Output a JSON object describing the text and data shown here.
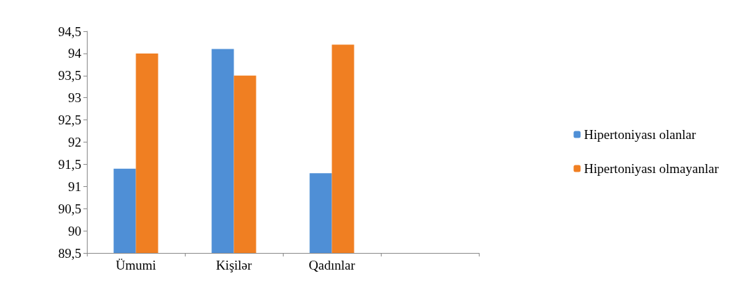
{
  "chart_data": {
    "type": "bar",
    "categories": [
      "Ümumi",
      "Kişilər",
      "Qadınlar",
      null
    ],
    "series": [
      {
        "name": "Hipertoniyası olanlar",
        "color": "#4f8fd6",
        "values": [
          91.4,
          94.1,
          91.3,
          null
        ]
      },
      {
        "name": "Hipertoniyası olmayanlar",
        "color": "#f07f22",
        "values": [
          94.0,
          93.5,
          94.2,
          null
        ]
      }
    ],
    "ylim": [
      89.5,
      94.5
    ],
    "yticks": [
      {
        "value": 89.5,
        "label": "89,5"
      },
      {
        "value": 90,
        "label": "90"
      },
      {
        "value": 90.5,
        "label": "90,5"
      },
      {
        "value": 91,
        "label": "91"
      },
      {
        "value": 91.5,
        "label": "91,5"
      },
      {
        "value": 92,
        "label": "92"
      },
      {
        "value": 92.5,
        "label": "92,5"
      },
      {
        "value": 93,
        "label": "93"
      },
      {
        "value": 93.5,
        "label": "93,5"
      },
      {
        "value": 94,
        "label": "94"
      },
      {
        "value": 94.5,
        "label": "94,5"
      }
    ],
    "grid": false,
    "legend": "right"
  }
}
